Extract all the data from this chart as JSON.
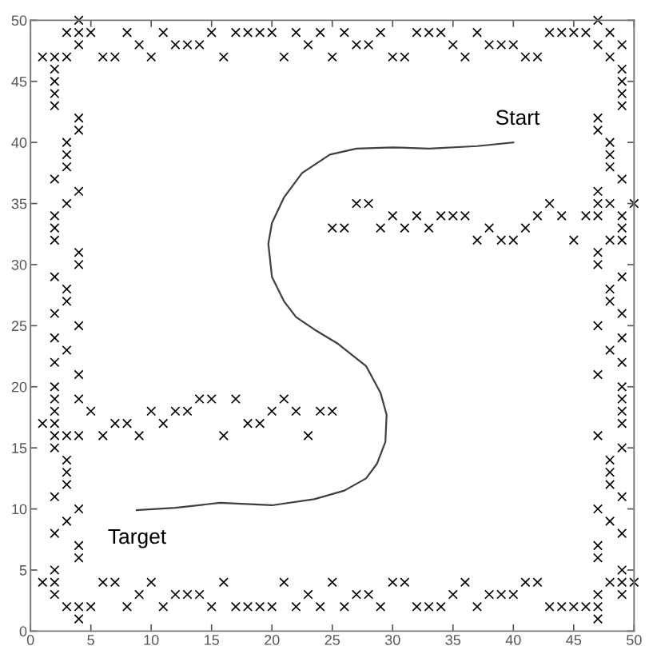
{
  "chart_data": {
    "type": "scatter",
    "xlim": [
      0,
      50
    ],
    "ylim": [
      0,
      50
    ],
    "xticks": [
      0,
      5,
      10,
      15,
      20,
      25,
      30,
      35,
      40,
      45,
      50
    ],
    "yticks": [
      0,
      5,
      10,
      15,
      20,
      25,
      30,
      35,
      40,
      45,
      50
    ],
    "grid": false,
    "legend": false,
    "annotations": [
      {
        "text": "Start",
        "x": 40,
        "y": 40
      },
      {
        "text": "Target",
        "x": 8.8,
        "y": 9.9
      }
    ],
    "series": [
      {
        "type": "scatter",
        "color": "#000000",
        "marker": "cross",
        "x": [
          4,
          47,
          3,
          4,
          5,
          8,
          11,
          15,
          17,
          18,
          19,
          20,
          22,
          24,
          26,
          29,
          32,
          33,
          34,
          37,
          43,
          44,
          45,
          46,
          48,
          4,
          9,
          12,
          13,
          14,
          23,
          27,
          28,
          35,
          38,
          39,
          40,
          47,
          49,
          1,
          2,
          3,
          6,
          7,
          10,
          16,
          21,
          25,
          30,
          31,
          36,
          41,
          42,
          48,
          2,
          49,
          2,
          49,
          2,
          49,
          2,
          49,
          4,
          47,
          4,
          47,
          3,
          48,
          3,
          48,
          3,
          48,
          2,
          49,
          4,
          47,
          3,
          27,
          28,
          43,
          47,
          48,
          50,
          2,
          30,
          32,
          34,
          35,
          36,
          42,
          44,
          46,
          47,
          49,
          2,
          25,
          26,
          29,
          31,
          33,
          38,
          41,
          49,
          2,
          37,
          39,
          40,
          45,
          48,
          49,
          4,
          47,
          4,
          47,
          2,
          49,
          3,
          48,
          3,
          48,
          2,
          49,
          4,
          47,
          2,
          49,
          3,
          48,
          2,
          49,
          4,
          47,
          2,
          49,
          2,
          4,
          14,
          15,
          17,
          21,
          49,
          2,
          5,
          10,
          12,
          13,
          20,
          22,
          24,
          25,
          49,
          1,
          2,
          7,
          8,
          11,
          18,
          19,
          49,
          2,
          3,
          4,
          6,
          9,
          16,
          23,
          47,
          2,
          49,
          3,
          48,
          3,
          48,
          3,
          48,
          2,
          49,
          4,
          47,
          3,
          48,
          2,
          49,
          4,
          47,
          4,
          47,
          2,
          49,
          1,
          2,
          6,
          7,
          10,
          16,
          21,
          25,
          30,
          31,
          36,
          41,
          42,
          48,
          49,
          50,
          2,
          9,
          12,
          13,
          14,
          23,
          27,
          28,
          35,
          38,
          39,
          40,
          47,
          49,
          3,
          4,
          5,
          8,
          11,
          15,
          17,
          18,
          19,
          20,
          22,
          24,
          26,
          29,
          32,
          33,
          34,
          37,
          43,
          44,
          45,
          46,
          47,
          4,
          47
        ],
        "values": [
          50,
          50,
          49,
          49,
          49,
          49,
          49,
          49,
          49,
          49,
          49,
          49,
          49,
          49,
          49,
          49,
          49,
          49,
          49,
          49,
          49,
          49,
          49,
          49,
          49,
          48,
          48,
          48,
          48,
          48,
          48,
          48,
          48,
          48,
          48,
          48,
          48,
          48,
          48,
          47,
          47,
          47,
          47,
          47,
          47,
          47,
          47,
          47,
          47,
          47,
          47,
          47,
          47,
          47,
          46,
          46,
          45,
          45,
          44,
          44,
          43,
          43,
          42,
          42,
          41,
          41,
          40,
          40,
          39,
          39,
          38,
          38,
          37,
          37,
          36,
          36,
          35,
          35,
          35,
          35,
          35,
          35,
          35,
          34,
          34,
          34,
          34,
          34,
          34,
          34,
          34,
          34,
          34,
          34,
          33,
          33,
          33,
          33,
          33,
          33,
          33,
          33,
          33,
          32,
          32,
          32,
          32,
          32,
          32,
          32,
          31,
          31,
          30,
          30,
          29,
          29,
          28,
          28,
          27,
          27,
          26,
          26,
          25,
          25,
          24,
          24,
          23,
          23,
          22,
          22,
          21,
          21,
          20,
          20,
          19,
          19,
          19,
          19,
          19,
          19,
          19,
          18,
          18,
          18,
          18,
          18,
          18,
          18,
          18,
          18,
          18,
          17,
          17,
          17,
          17,
          17,
          17,
          17,
          17,
          16,
          16,
          16,
          16,
          16,
          16,
          16,
          16,
          15,
          15,
          14,
          14,
          13,
          13,
          12,
          12,
          11,
          11,
          10,
          10,
          9,
          9,
          8,
          8,
          7,
          7,
          6,
          6,
          5,
          5,
          4,
          4,
          4,
          4,
          4,
          4,
          4,
          4,
          4,
          4,
          4,
          4,
          4,
          4,
          4,
          4,
          3,
          3,
          3,
          3,
          3,
          3,
          3,
          3,
          3,
          3,
          3,
          3,
          3,
          3,
          2,
          2,
          2,
          2,
          2,
          2,
          2,
          2,
          2,
          2,
          2,
          2,
          2,
          2,
          2,
          2,
          2,
          2,
          2,
          2,
          2,
          2,
          2,
          1,
          1
        ]
      },
      {
        "type": "line",
        "color": "#404040",
        "marker": "none",
        "line_style": "solid",
        "x": [
          40,
          37,
          33,
          30,
          27,
          24.8,
          22.5,
          21,
          20,
          19.7,
          20,
          21,
          22,
          23.5,
          25.5,
          27.8,
          29,
          29.5,
          29.4,
          28.7,
          27.8,
          26,
          23.5,
          20,
          15.7,
          12,
          8.8
        ],
        "values": [
          40,
          39.7,
          39.5,
          39.6,
          39.5,
          39,
          37.5,
          35.5,
          33.4,
          31.7,
          29,
          27,
          25.7,
          24.7,
          23.5,
          21.7,
          19.5,
          17.7,
          15.5,
          13.7,
          12.5,
          11.5,
          10.8,
          10.3,
          10.5,
          10.1,
          9.9
        ]
      }
    ]
  }
}
